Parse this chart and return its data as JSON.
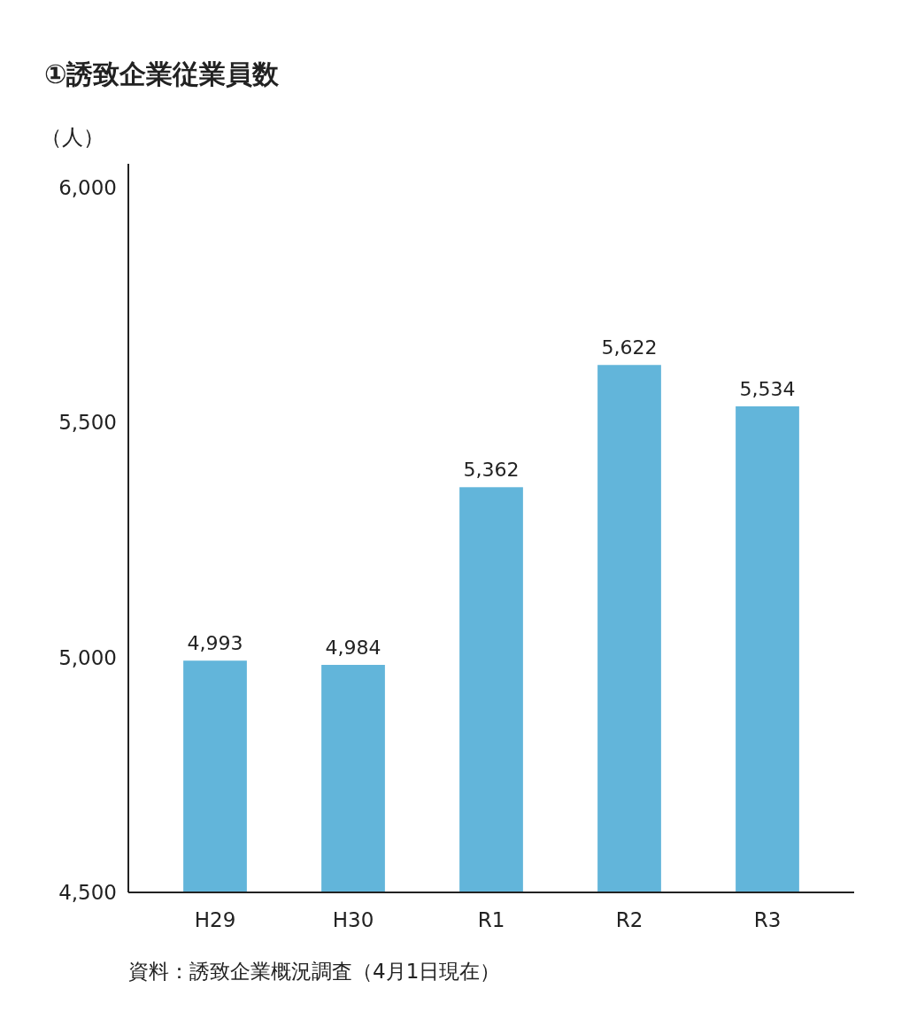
{
  "chart_data": {
    "type": "bar",
    "title": "①誘致企業従業員数",
    "ylabel": "（人）",
    "categories": [
      "H29",
      "H30",
      "R1",
      "R2",
      "R3"
    ],
    "values": [
      4993,
      4984,
      5362,
      5622,
      5534
    ],
    "color": "#62b5da",
    "ylim": [
      4500,
      6050
    ],
    "yticks": [
      {
        "value": 4500,
        "label": "4,500"
      },
      {
        "value": 5000,
        "label": "5,000"
      },
      {
        "value": 5500,
        "label": "5,500"
      },
      {
        "value": 6000,
        "label": "6,000"
      }
    ],
    "value_labels": [
      "4,993",
      "4,984",
      "5,362",
      "5,622",
      "5,534"
    ],
    "grid": false,
    "annotations": [
      "資料：誘致企業概況調査（4月1日現在）"
    ]
  }
}
